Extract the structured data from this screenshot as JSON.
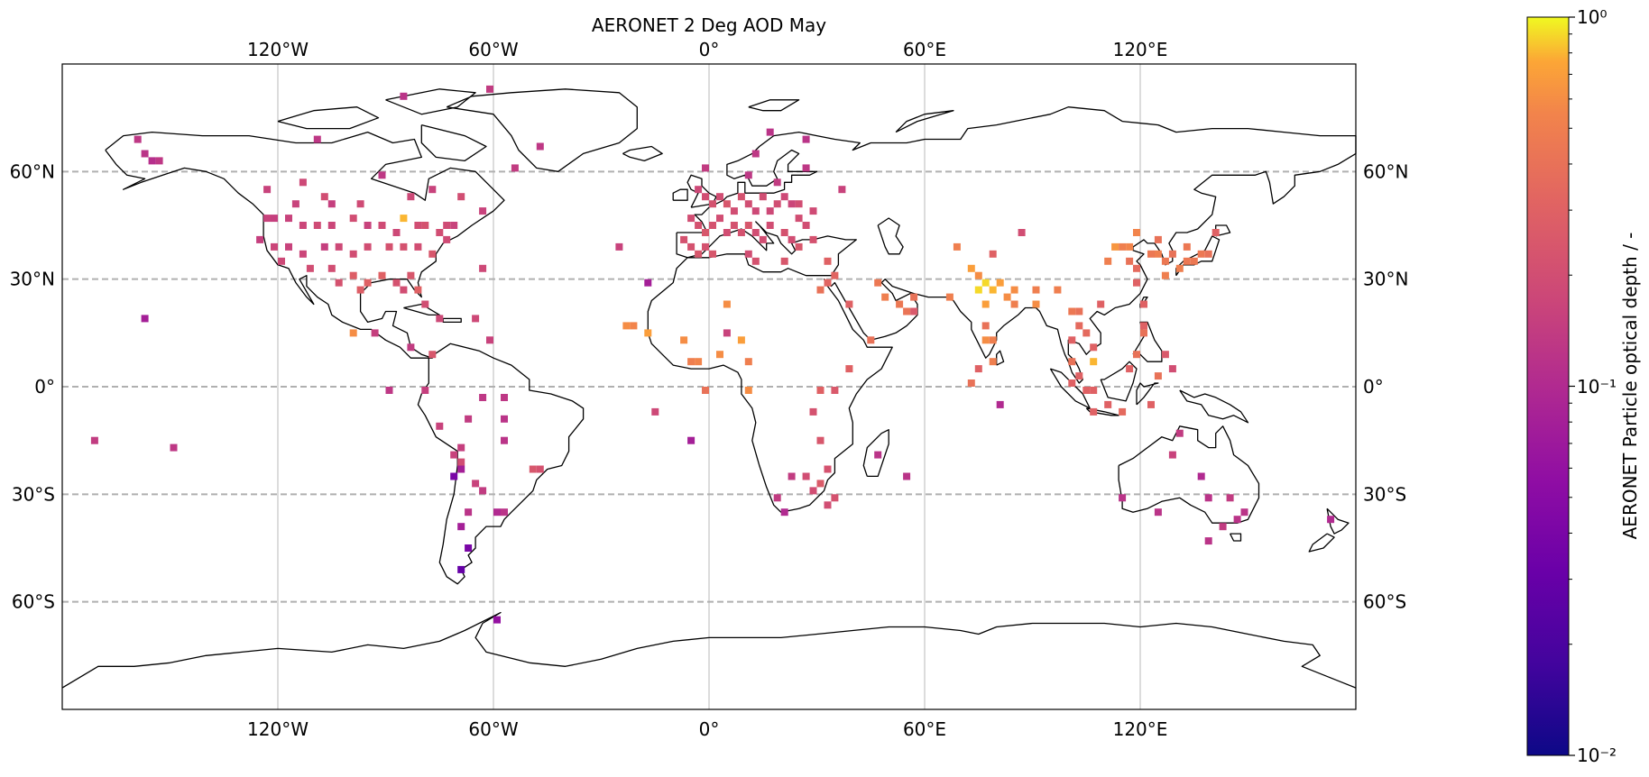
{
  "figure": {
    "title": "AERONET 2 Deg AOD May"
  },
  "map": {
    "projection": "PlateCarree",
    "extent": {
      "lon": [
        -180,
        180
      ],
      "lat": [
        -90,
        90
      ]
    },
    "gridlines": {
      "lon": [
        -120,
        -60,
        0,
        60,
        120
      ],
      "lat": [
        60,
        30,
        0,
        -30,
        -60
      ],
      "lon_labels": [
        "120°W",
        "60°W",
        "0°",
        "60°E",
        "120°E"
      ],
      "lat_labels": [
        "60°N",
        "30°N",
        "0°",
        "30°S",
        "60°S"
      ]
    },
    "coastline": "black",
    "cell_size_deg": 2
  },
  "colorbar": {
    "label": "AERONET Particle optical depth / -",
    "scale": "log",
    "range": [
      0.01,
      1
    ],
    "colormap": "plasma",
    "tick_labels": [
      "10⁰",
      "10⁻¹",
      "10⁻²"
    ]
  },
  "chart_data": {
    "type": "heatmap",
    "title": "AERONET 2 Deg AOD May",
    "value_label": "AERONET Particle optical depth / -",
    "value_range": [
      0.01,
      1
    ],
    "value_scale": "log",
    "points": [
      [
        -159,
        69,
        0.13
      ],
      [
        -157,
        65,
        0.12
      ],
      [
        -155,
        63,
        0.11
      ],
      [
        -153,
        63,
        0.13
      ],
      [
        -109,
        69,
        0.13
      ],
      [
        -91,
        59,
        0.13
      ],
      [
        -85,
        81,
        0.12
      ],
      [
        -61,
        83,
        0.14
      ],
      [
        -47,
        67,
        0.13
      ],
      [
        -54,
        61,
        0.14
      ],
      [
        -123,
        55,
        0.16
      ],
      [
        -113,
        57,
        0.18
      ],
      [
        -107,
        53,
        0.2
      ],
      [
        -115,
        51,
        0.16
      ],
      [
        -105,
        51,
        0.15
      ],
      [
        -97,
        51,
        0.19
      ],
      [
        -83,
        53,
        0.18
      ],
      [
        -77,
        55,
        0.16
      ],
      [
        -69,
        53,
        0.2
      ],
      [
        -63,
        49,
        0.16
      ],
      [
        -123,
        47,
        0.16
      ],
      [
        -121,
        47,
        0.15
      ],
      [
        -117,
        47,
        0.16
      ],
      [
        -113,
        45,
        0.17
      ],
      [
        -109,
        45,
        0.19
      ],
      [
        -105,
        45,
        0.17
      ],
      [
        -99,
        47,
        0.2
      ],
      [
        -95,
        45,
        0.16
      ],
      [
        -91,
        45,
        0.19
      ],
      [
        -87,
        43,
        0.18
      ],
      [
        -85,
        47,
        0.8
      ],
      [
        -81,
        45,
        0.2
      ],
      [
        -79,
        45,
        0.22
      ],
      [
        -75,
        43,
        0.2
      ],
      [
        -73,
        45,
        0.19
      ],
      [
        -71,
        45,
        0.16
      ],
      [
        -125,
        41,
        0.15
      ],
      [
        -121,
        39,
        0.17
      ],
      [
        -117,
        39,
        0.16
      ],
      [
        -113,
        37,
        0.17
      ],
      [
        -107,
        39,
        0.15
      ],
      [
        -103,
        39,
        0.18
      ],
      [
        -99,
        37,
        0.2
      ],
      [
        -95,
        39,
        0.2
      ],
      [
        -89,
        39,
        0.22
      ],
      [
        -85,
        39,
        0.22
      ],
      [
        -81,
        39,
        0.2
      ],
      [
        -77,
        37,
        0.24
      ],
      [
        -73,
        41,
        0.19
      ],
      [
        -119,
        35,
        0.18
      ],
      [
        -111,
        33,
        0.2
      ],
      [
        -105,
        33,
        0.2
      ],
      [
        -99,
        31,
        0.28
      ],
      [
        -95,
        29,
        0.3
      ],
      [
        -91,
        31,
        0.3
      ],
      [
        -87,
        29,
        0.22
      ],
      [
        -83,
        31,
        0.24
      ],
      [
        -81,
        27,
        0.3
      ],
      [
        -85,
        27,
        0.2
      ],
      [
        -97,
        27,
        0.28
      ],
      [
        -103,
        29,
        0.22
      ],
      [
        -79,
        23,
        0.2
      ],
      [
        -75,
        19,
        0.18
      ],
      [
        -65,
        19,
        0.18
      ],
      [
        -63,
        33,
        0.18
      ],
      [
        -157,
        19,
        0.08
      ],
      [
        -99,
        15,
        0.6
      ],
      [
        -93,
        15,
        0.15
      ],
      [
        -83,
        11,
        0.14
      ],
      [
        -77,
        9,
        0.24
      ],
      [
        -61,
        13,
        0.16
      ],
      [
        -89,
        -1,
        0.13
      ],
      [
        -79,
        -1,
        0.15
      ],
      [
        -75,
        -11,
        0.16
      ],
      [
        -67,
        -9,
        0.14
      ],
      [
        -63,
        -3,
        0.13
      ],
      [
        -57,
        -3,
        0.13
      ],
      [
        -57,
        -9,
        0.12
      ],
      [
        -57,
        -15,
        0.12
      ],
      [
        -69,
        -17,
        0.15
      ],
      [
        -71,
        -19,
        0.16
      ],
      [
        -69,
        -21,
        0.2
      ],
      [
        -71,
        -25,
        0.04
      ],
      [
        -69,
        -23,
        0.08
      ],
      [
        -65,
        -27,
        0.16
      ],
      [
        -63,
        -29,
        0.14
      ],
      [
        -67,
        -35,
        0.12
      ],
      [
        -69,
        -39,
        0.08
      ],
      [
        -67,
        -45,
        0.04
      ],
      [
        -69,
        -51,
        0.03
      ],
      [
        -57,
        -35,
        0.12
      ],
      [
        -59,
        -35,
        0.1
      ],
      [
        -49,
        -23,
        0.24
      ],
      [
        -47,
        -23,
        0.22
      ],
      [
        -59,
        -65,
        0.06
      ],
      [
        -171,
        -15,
        0.14
      ],
      [
        -149,
        -17,
        0.13
      ],
      [
        -25,
        39,
        0.16
      ],
      [
        -17,
        29,
        0.08
      ],
      [
        -23,
        17,
        0.6
      ],
      [
        -21,
        17,
        0.55
      ],
      [
        -17,
        15,
        0.7
      ],
      [
        -15,
        -7,
        0.18
      ],
      [
        -7,
        13,
        0.6
      ],
      [
        -5,
        7,
        0.5
      ],
      [
        -3,
        7,
        0.55
      ],
      [
        3,
        9,
        0.6
      ],
      [
        5,
        23,
        0.6
      ],
      [
        9,
        13,
        0.7
      ],
      [
        11,
        7,
        0.5
      ],
      [
        11,
        -1,
        0.6
      ],
      [
        -5,
        -15,
        0.08
      ],
      [
        -1,
        61,
        0.14
      ],
      [
        11,
        59,
        0.13
      ],
      [
        17,
        71,
        0.12
      ],
      [
        27,
        69,
        0.12
      ],
      [
        13,
        65,
        0.13
      ],
      [
        19,
        57,
        0.14
      ],
      [
        27,
        61,
        0.13
      ],
      [
        -3,
        55,
        0.18
      ],
      [
        -1,
        53,
        0.2
      ],
      [
        1,
        51,
        0.22
      ],
      [
        3,
        53,
        0.2
      ],
      [
        5,
        51,
        0.24
      ],
      [
        7,
        49,
        0.2
      ],
      [
        9,
        53,
        0.22
      ],
      [
        11,
        51,
        0.2
      ],
      [
        13,
        49,
        0.18
      ],
      [
        15,
        53,
        0.2
      ],
      [
        17,
        49,
        0.18
      ],
      [
        19,
        51,
        0.2
      ],
      [
        21,
        53,
        0.18
      ],
      [
        23,
        51,
        0.17
      ],
      [
        -5,
        47,
        0.2
      ],
      [
        -3,
        45,
        0.22
      ],
      [
        -1,
        43,
        0.24
      ],
      [
        1,
        45,
        0.22
      ],
      [
        3,
        47,
        0.2
      ],
      [
        5,
        43,
        0.2
      ],
      [
        7,
        45,
        0.22
      ],
      [
        9,
        43,
        0.22
      ],
      [
        11,
        45,
        0.24
      ],
      [
        13,
        43,
        0.2
      ],
      [
        15,
        41,
        0.2
      ],
      [
        17,
        45,
        0.2
      ],
      [
        21,
        43,
        0.22
      ],
      [
        23,
        41,
        0.2
      ],
      [
        25,
        47,
        0.2
      ],
      [
        27,
        45,
        0.2
      ],
      [
        -7,
        41,
        0.22
      ],
      [
        -5,
        39,
        0.22
      ],
      [
        -3,
        37,
        0.24
      ],
      [
        -1,
        39,
        0.22
      ],
      [
        1,
        37,
        0.24
      ],
      [
        11,
        37,
        0.2
      ],
      [
        13,
        35,
        0.22
      ],
      [
        21,
        35,
        0.24
      ],
      [
        25,
        39,
        0.24
      ],
      [
        29,
        41,
        0.22
      ],
      [
        33,
        35,
        0.3
      ],
      [
        35,
        31,
        0.32
      ],
      [
        33,
        29,
        0.32
      ],
      [
        47,
        29,
        0.45
      ],
      [
        49,
        25,
        0.5
      ],
      [
        53,
        23,
        0.45
      ],
      [
        57,
        25,
        0.4
      ],
      [
        55,
        21,
        0.42
      ],
      [
        45,
        13,
        0.4
      ],
      [
        31,
        27,
        0.4
      ],
      [
        39,
        23,
        0.3
      ],
      [
        25,
        51,
        0.2
      ],
      [
        29,
        49,
        0.19
      ],
      [
        37,
        55,
        0.16
      ],
      [
        5,
        15,
        0.16
      ],
      [
        -1,
        -1,
        0.4
      ],
      [
        31,
        -1,
        0.3
      ],
      [
        35,
        -1,
        0.25
      ],
      [
        39,
        5,
        0.3
      ],
      [
        29,
        -7,
        0.22
      ],
      [
        31,
        -15,
        0.24
      ],
      [
        23,
        -25,
        0.14
      ],
      [
        27,
        -25,
        0.2
      ],
      [
        33,
        -23,
        0.22
      ],
      [
        31,
        -27,
        0.26
      ],
      [
        29,
        -29,
        0.2
      ],
      [
        33,
        -33,
        0.2
      ],
      [
        35,
        -31,
        0.22
      ],
      [
        19,
        -31,
        0.14
      ],
      [
        21,
        -35,
        0.1
      ],
      [
        55,
        -25,
        0.12
      ],
      [
        47,
        -19,
        0.12
      ],
      [
        57,
        21,
        0.25
      ],
      [
        69,
        39,
        0.5
      ],
      [
        79,
        37,
        0.3
      ],
      [
        87,
        43,
        0.2
      ],
      [
        73,
        33,
        0.7
      ],
      [
        75,
        31,
        0.6
      ],
      [
        77,
        29,
        0.9
      ],
      [
        79,
        27,
        0.8
      ],
      [
        75,
        27,
        0.9
      ],
      [
        81,
        29,
        0.7
      ],
      [
        83,
        25,
        0.6
      ],
      [
        85,
        27,
        0.6
      ],
      [
        77,
        23,
        0.7
      ],
      [
        85,
        23,
        0.5
      ],
      [
        91,
        23,
        0.6
      ],
      [
        91,
        27,
        0.5
      ],
      [
        97,
        27,
        0.5
      ],
      [
        101,
        21,
        0.45
      ],
      [
        103,
        21,
        0.4
      ],
      [
        103,
        17,
        0.35
      ],
      [
        101,
        13,
        0.3
      ],
      [
        105,
        15,
        0.35
      ],
      [
        107,
        11,
        0.3
      ],
      [
        107,
        7,
        0.8
      ],
      [
        101,
        7,
        0.4
      ],
      [
        103,
        3,
        0.3
      ],
      [
        101,
        1,
        0.3
      ],
      [
        105,
        -1,
        0.3
      ],
      [
        107,
        -1,
        0.3
      ],
      [
        111,
        -5,
        0.3
      ],
      [
        107,
        -7,
        0.3
      ],
      [
        115,
        -7,
        0.35
      ],
      [
        117,
        5,
        0.3
      ],
      [
        119,
        9,
        0.4
      ],
      [
        121,
        15,
        0.4
      ],
      [
        121,
        17,
        0.3
      ],
      [
        121,
        23,
        0.3
      ],
      [
        119,
        29,
        0.3
      ],
      [
        119,
        33,
        0.35
      ],
      [
        115,
        39,
        0.5
      ],
      [
        117,
        39,
        0.55
      ],
      [
        119,
        43,
        0.55
      ],
      [
        117,
        35,
        0.4
      ],
      [
        123,
        37,
        0.45
      ],
      [
        125,
        37,
        0.5
      ],
      [
        127,
        35,
        0.45
      ],
      [
        129,
        37,
        0.4
      ],
      [
        131,
        33,
        0.5
      ],
      [
        133,
        35,
        0.45
      ],
      [
        135,
        35,
        0.45
      ],
      [
        137,
        37,
        0.45
      ],
      [
        139,
        37,
        0.4
      ],
      [
        141,
        43,
        0.3
      ],
      [
        133,
        39,
        0.45
      ],
      [
        125,
        41,
        0.4
      ],
      [
        127,
        31,
        0.5
      ],
      [
        111,
        35,
        0.5
      ],
      [
        109,
        23,
        0.3
      ],
      [
        123,
        -5,
        0.3
      ],
      [
        125,
        3,
        0.4
      ],
      [
        127,
        9,
        0.25
      ],
      [
        129,
        5,
        0.2
      ],
      [
        77,
        13,
        0.6
      ],
      [
        79,
        7,
        0.5
      ],
      [
        73,
        1,
        0.4
      ],
      [
        79,
        13,
        0.5
      ],
      [
        81,
        -5,
        0.1
      ],
      [
        67,
        25,
        0.5
      ],
      [
        77,
        17,
        0.4
      ],
      [
        75,
        5,
        0.3
      ],
      [
        113,
        39,
        0.65
      ],
      [
        131,
        -13,
        0.14
      ],
      [
        129,
        -19,
        0.16
      ],
      [
        125,
        -35,
        0.12
      ],
      [
        115,
        -31,
        0.12
      ],
      [
        137,
        -25,
        0.1
      ],
      [
        139,
        -31,
        0.12
      ],
      [
        145,
        -31,
        0.14
      ],
      [
        147,
        -37,
        0.12
      ],
      [
        149,
        -35,
        0.12
      ],
      [
        143,
        -39,
        0.14
      ],
      [
        139,
        -43,
        0.12
      ],
      [
        173,
        -37,
        0.1
      ]
    ]
  }
}
